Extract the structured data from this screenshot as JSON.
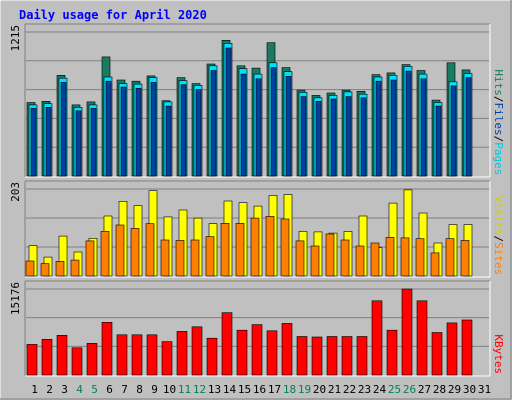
{
  "chart_data": {
    "type": "bar",
    "title": "Daily usage for April 2020",
    "x": [
      "1",
      "2",
      "3",
      "4",
      "5",
      "6",
      "7",
      "8",
      "9",
      "10",
      "11",
      "12",
      "13",
      "14",
      "15",
      "16",
      "17",
      "18",
      "19",
      "20",
      "21",
      "22",
      "23",
      "24",
      "25",
      "26",
      "27",
      "28",
      "29",
      "30",
      "31"
    ],
    "weekend_days": [
      "4",
      "5",
      "11",
      "12",
      "18",
      "19",
      "25",
      "26"
    ],
    "panels": [
      {
        "id": "hits",
        "max_label": "1215",
        "ymax": 1215,
        "legend": [
          "Pages",
          "Files",
          "Hits"
        ],
        "series": [
          {
            "name": "Hits",
            "color": "#1a7a62",
            "values": [
              620,
              630,
              850,
              600,
              625,
              1005,
              810,
              800,
              845,
              635,
              830,
              780,
              945,
              1145,
              930,
              910,
              1125,
              915,
              725,
              680,
              700,
              725,
              715,
              855,
              870,
              940,
              890,
              640,
              955,
              895,
              null
            ]
          },
          {
            "name": "Files",
            "color": "#00e0ff",
            "values": [
              600,
              610,
              825,
              580,
              600,
              835,
              780,
              775,
              830,
              625,
              805,
              765,
              930,
              1120,
              905,
              860,
              955,
              880,
              705,
              660,
              680,
              710,
              690,
              835,
              850,
              925,
              860,
              620,
              795,
              865,
              null
            ]
          },
          {
            "name": "Pages",
            "color": "#0040a0",
            "values": [
              570,
              580,
              790,
              550,
              570,
              800,
              750,
              740,
              790,
              590,
              770,
              730,
              890,
              1080,
              860,
              820,
              915,
              840,
              670,
              630,
              650,
              670,
              660,
              800,
              810,
              885,
              820,
              590,
              760,
              830,
              null
            ]
          }
        ]
      },
      {
        "id": "visits",
        "max_label": "203",
        "ymax": 203,
        "legend": [
          "Sites",
          "Visits"
        ],
        "series": [
          {
            "name": "Visits",
            "color": "#ffff00",
            "values": [
              71,
              44,
              93,
              56,
              88,
              140,
              174,
              164,
              199,
              138,
              154,
              135,
              122,
              175,
              171,
              163,
              188,
              190,
              104,
              103,
              100,
              104,
              140,
              66,
              170,
              201,
              147,
              77,
              120,
              120,
              null
            ]
          },
          {
            "name": "Sites",
            "color": "#ff8000",
            "values": [
              35,
              29,
              34,
              37,
              82,
              104,
              119,
              111,
              122,
              84,
              83,
              84,
              92,
              123,
              123,
              135,
              139,
              133,
              82,
              70,
              98,
              84,
              70,
              77,
              90,
              89,
              87,
              54,
              87,
              83,
              null
            ]
          }
        ]
      },
      {
        "id": "kbytes",
        "max_label": "15176",
        "ymax": 15176,
        "legend": [
          "KBytes"
        ],
        "series": [
          {
            "name": "KBytes",
            "color": "#ff0000",
            "values": [
              5400,
              6300,
              7000,
              4800,
              5600,
              9300,
              7100,
              7100,
              7100,
              5900,
              7700,
              8500,
              6500,
              11000,
              7900,
              8900,
              7800,
              9100,
              6800,
              6700,
              6800,
              6800,
              6800,
              13100,
              7900,
              15176,
              13100,
              7500,
              9200,
              9700,
              null
            ]
          }
        ]
      }
    ]
  },
  "colors": {
    "background": "#c0c0c0",
    "plot_background": "#c0c0c0",
    "title": "#0000ff",
    "axis_text": "#000000",
    "weekend_text": "#00805c"
  }
}
